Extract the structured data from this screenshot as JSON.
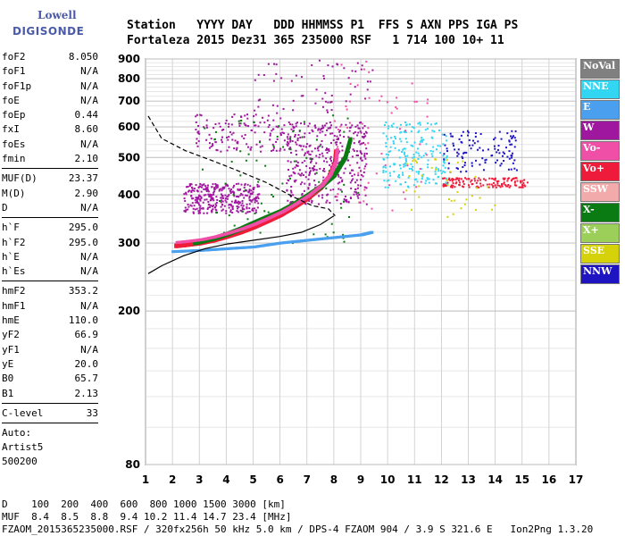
{
  "logo": {
    "line1": "Lowell",
    "line2": "DIGISONDE"
  },
  "header": {
    "line1": "Station   YYYY DAY   DDD HHMMSS P1  FFS S AXN PPS IGA PS",
    "line2": "Fortaleza 2015 Dez31 365 235000 RSF   1 714 100 10+ 11"
  },
  "params_group1": [
    {
      "k": "foF2",
      "v": "8.050"
    },
    {
      "k": "foF1",
      "v": "N/A"
    },
    {
      "k": "foF1p",
      "v": "N/A"
    },
    {
      "k": "foE",
      "v": "N/A"
    },
    {
      "k": "foEp",
      "v": "0.44"
    },
    {
      "k": "fxI",
      "v": "8.60"
    },
    {
      "k": "foEs",
      "v": "N/A"
    },
    {
      "k": "fmin",
      "v": "2.10"
    }
  ],
  "params_group2": [
    {
      "k": "MUF(D)",
      "v": "23.37"
    },
    {
      "k": "M(D)",
      "v": "2.90"
    },
    {
      "k": "D",
      "v": "N/A"
    }
  ],
  "params_group3": [
    {
      "k": "h`F",
      "v": "295.0"
    },
    {
      "k": "h`F2",
      "v": "295.0"
    },
    {
      "k": "h`E",
      "v": "N/A"
    },
    {
      "k": "h`Es",
      "v": "N/A"
    }
  ],
  "params_group4": [
    {
      "k": "hmF2",
      "v": "353.2"
    },
    {
      "k": "hmF1",
      "v": "N/A"
    },
    {
      "k": "hmE",
      "v": "110.0"
    },
    {
      "k": "yF2",
      "v": "66.9"
    },
    {
      "k": "yF1",
      "v": "N/A"
    },
    {
      "k": "yE",
      "v": "20.0"
    },
    {
      "k": "B0",
      "v": "65.7"
    },
    {
      "k": "B1",
      "v": "2.13"
    }
  ],
  "params_group5": [
    {
      "k": "C-level",
      "v": "33"
    }
  ],
  "auto": {
    "line1": "Auto:",
    "line2": "Artist5",
    "line3": "500200"
  },
  "bottom": {
    "line1": "D    100  200  400  600  800 1000 1500 3000 [km]",
    "line2": "MUF  8.4  8.5  8.8  9.4 10.2 11.4 14.7 23.4 [MHz]",
    "line3": "FZAOM_2015365235000.RSF / 320fx256h 50 kHz 5.0 km / DPS-4 FZAOM 904 / 3.9 S 321.6 E   Ion2Png 1.3.20"
  },
  "legend": [
    {
      "label": "NoVal",
      "color": "#808080"
    },
    {
      "label": "NNE",
      "color": "#33d6f2"
    },
    {
      "label": "E",
      "color": "#4aa0ee"
    },
    {
      "label": "W",
      "color": "#a0179f"
    },
    {
      "label": "Vo-",
      "color": "#f04fa8"
    },
    {
      "label": "Vo+",
      "color": "#ee1c3a"
    },
    {
      "label": "SSW",
      "color": "#f2aaaa"
    },
    {
      "label": "X-",
      "color": "#0a7a12"
    },
    {
      "label": "X+",
      "color": "#9ccf5a"
    },
    {
      "label": "SSE",
      "color": "#d6d20a"
    },
    {
      "label": "NNW",
      "color": "#1e14c2"
    }
  ],
  "chart_data": {
    "type": "scatter",
    "xlim": [
      1,
      17
    ],
    "ylim": [
      80,
      900
    ],
    "y_scale": "log",
    "x_ticks": [
      "1",
      "2",
      "3",
      "4",
      "5",
      "6",
      "7",
      "8",
      "9",
      "10",
      "11",
      "12",
      "13",
      "14",
      "15",
      "16",
      "17"
    ],
    "y_ticks": [
      {
        "value": 80,
        "label": "80"
      },
      {
        "value": 200,
        "label": "200"
      },
      {
        "value": 300,
        "label": "300"
      },
      {
        "value": 400,
        "label": "400"
      },
      {
        "value": 500,
        "label": "500"
      },
      {
        "value": 600,
        "label": "600"
      },
      {
        "value": 700,
        "label": "700"
      },
      {
        "value": 800,
        "label": "800"
      },
      {
        "value": 900,
        "label": "900"
      }
    ],
    "grid": true,
    "profile_curve_dashed": [
      [
        1.1,
        640
      ],
      [
        1.6,
        560
      ],
      [
        2.5,
        520
      ],
      [
        3.5,
        490
      ],
      [
        4.5,
        460
      ],
      [
        5.5,
        430
      ],
      [
        6.5,
        395
      ],
      [
        7.2,
        375
      ],
      [
        7.8,
        368
      ],
      [
        8.05,
        353
      ]
    ],
    "profile_curve_solid": [
      [
        1.1,
        250
      ],
      [
        1.6,
        262
      ],
      [
        2.4,
        278
      ],
      [
        3.2,
        290
      ],
      [
        4.0,
        298
      ],
      [
        5.0,
        305
      ],
      [
        6.0,
        312
      ],
      [
        6.8,
        320
      ],
      [
        7.5,
        335
      ],
      [
        8.0,
        353
      ]
    ],
    "trace_ordinary": [
      [
        2.1,
        295
      ],
      [
        2.5,
        297
      ],
      [
        3.0,
        300
      ],
      [
        3.5,
        305
      ],
      [
        4.0,
        312
      ],
      [
        4.5,
        320
      ],
      [
        5.0,
        330
      ],
      [
        5.5,
        342
      ],
      [
        6.0,
        355
      ],
      [
        6.5,
        372
      ],
      [
        7.0,
        392
      ],
      [
        7.5,
        418
      ],
      [
        7.8,
        445
      ],
      [
        8.0,
        480
      ],
      [
        8.05,
        520
      ]
    ],
    "trace_extraordinary": [
      [
        2.8,
        300
      ],
      [
        3.5,
        308
      ],
      [
        4.0,
        316
      ],
      [
        4.5,
        326
      ],
      [
        5.0,
        338
      ],
      [
        5.5,
        350
      ],
      [
        6.0,
        362
      ],
      [
        6.5,
        378
      ],
      [
        7.0,
        398
      ],
      [
        7.5,
        420
      ],
      [
        8.0,
        450
      ],
      [
        8.4,
        500
      ],
      [
        8.6,
        560
      ]
    ],
    "trace_E_west": [
      [
        2.0,
        285
      ],
      [
        3.0,
        287
      ],
      [
        4.0,
        290
      ],
      [
        5.0,
        293
      ],
      [
        6.0,
        300
      ],
      [
        7.0,
        305
      ],
      [
        8.0,
        310
      ],
      [
        9.0,
        315
      ],
      [
        9.4,
        320
      ]
    ],
    "clusters": [
      {
        "name": "spread_w_low",
        "color": "#a0179f",
        "x": [
          2.4,
          5.2
        ],
        "y": [
          360,
          430
        ],
        "n": 320
      },
      {
        "name": "spread_w_mid",
        "color": "#a0179f",
        "x": [
          6.2,
          9.2
        ],
        "y": [
          380,
          620
        ],
        "n": 380
      },
      {
        "name": "spread_w_upper",
        "color": "#a0179f",
        "x": [
          2.8,
          6.5
        ],
        "y": [
          520,
          650
        ],
        "n": 140
      },
      {
        "name": "high_scatter",
        "color": "#a0179f",
        "x": [
          5.0,
          9.5
        ],
        "y": [
          650,
          900
        ],
        "n": 60
      },
      {
        "name": "nne_right",
        "color": "#33d6f2",
        "x": [
          9.8,
          12.2
        ],
        "y": [
          420,
          620
        ],
        "n": 200
      },
      {
        "name": "nnw_right",
        "color": "#1e14c2",
        "x": [
          12.0,
          14.8
        ],
        "y": [
          460,
          590
        ],
        "n": 110
      },
      {
        "name": "mixed_right",
        "color": "#ee1c3a",
        "x": [
          12.0,
          15.2
        ],
        "y": [
          420,
          445
        ],
        "n": 130
      },
      {
        "name": "sse_right",
        "color": "#d6d20a",
        "x": [
          10.5,
          14.0
        ],
        "y": [
          350,
          500
        ],
        "n": 40
      },
      {
        "name": "green_mid",
        "color": "#0a7a12",
        "x": [
          3.0,
          9.0
        ],
        "y": [
          300,
          650
        ],
        "n": 80
      },
      {
        "name": "vo_minus",
        "color": "#f04fa8",
        "x": [
          8.0,
          11.5
        ],
        "y": [
          360,
          900
        ],
        "n": 60
      }
    ]
  }
}
